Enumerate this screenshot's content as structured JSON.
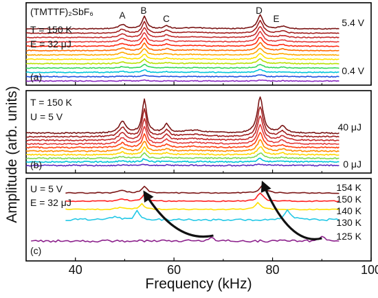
{
  "chart_data": {
    "type": "line",
    "xlabel": "Frequency (kHz)",
    "ylabel": "Amplitude (arb. units)",
    "xlim": [
      30,
      100
    ],
    "x_ticks": [
      "40",
      "60",
      "80",
      "100"
    ],
    "x_tick_values": [
      40,
      60,
      80,
      100
    ],
    "panels": [
      {
        "id": "a",
        "panel_label": "(a)",
        "annotations": [
          "(TMTTF)₂SbF₆",
          "T = 150 K",
          "E = 32 μJ"
        ],
        "peak_labels": [
          {
            "text": "A",
            "x": 49.5
          },
          {
            "text": "B",
            "x": 54
          },
          {
            "text": "C",
            "x": 58.5
          },
          {
            "text": "D",
            "x": 77.5
          },
          {
            "text": "E",
            "x": 82
          }
        ],
        "series_top_label": "5.4 V",
        "series_bottom_label": "0.4 V",
        "n_traces": 13,
        "colors": [
          "#7a1414",
          "#a01e1e",
          "#c22a2a",
          "#e23a3a",
          "#ff2a10",
          "#ff6a00",
          "#ffa800",
          "#ffe000",
          "#b8e000",
          "#33d85a",
          "#00c4d8",
          "#1f4fe0",
          "#8b2bc2"
        ],
        "peak_heights": [
          1.0,
          0.9,
          0.82,
          0.74,
          0.66,
          0.58,
          0.5,
          0.42,
          0.34,
          0.27,
          0.2,
          0.14,
          0.08
        ]
      },
      {
        "id": "b",
        "panel_label": "(b)",
        "annotations": [
          "T = 150 K",
          "U = 5 V"
        ],
        "series_top_label": "40 μJ",
        "series_bottom_label": "0 μJ",
        "n_traces": 10,
        "colors": [
          "#7a1414",
          "#a01e1e",
          "#c22a2a",
          "#e23a3a",
          "#ff4010",
          "#ff8c00",
          "#ffd800",
          "#7fd850",
          "#00c4d8",
          "#5a2bc2"
        ],
        "peak_heights": [
          1.0,
          0.82,
          0.66,
          0.52,
          0.4,
          0.3,
          0.22,
          0.15,
          0.09,
          0.04
        ]
      },
      {
        "id": "c",
        "panel_label": "(c)",
        "annotations": [
          "U = 5 V",
          "E = 32 μJ"
        ],
        "series": [
          {
            "name": "154 K",
            "color": "#7a1414",
            "peak_B": 54,
            "peak_D": 78
          },
          {
            "name": "150 K",
            "color": "#ff2020",
            "peak_B": 54,
            "peak_D": 77.5
          },
          {
            "name": "140 K",
            "color": "#ffe000",
            "peak_B": 53.5,
            "peak_D": 77
          },
          {
            "name": "130 K",
            "color": "#22c8e6",
            "peak_B": 52.5,
            "peak_D": 83
          },
          {
            "name": "125 K",
            "color": "#8b1f8b",
            "peak_B": 67.5,
            "peak_D": 90
          }
        ],
        "arrows": [
          {
            "from_x": 68,
            "to_x": 54
          },
          {
            "from_x": 90,
            "to_x": 78
          }
        ]
      }
    ]
  }
}
